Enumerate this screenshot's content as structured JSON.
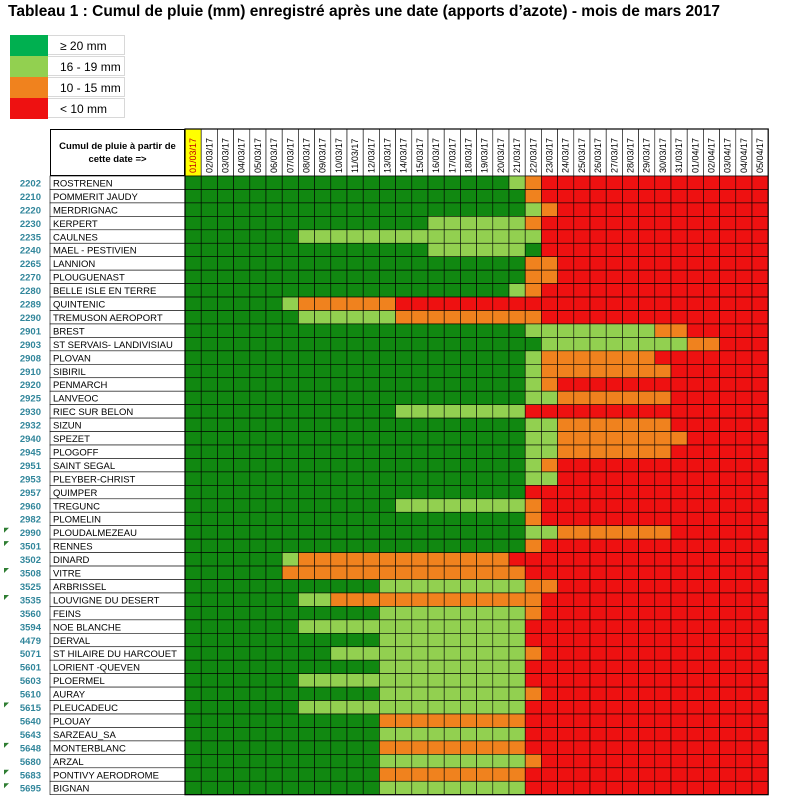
{
  "title": "Tableau 1 :  Cumul de pluie (mm) enregistré après une date (apports d’azote) - mois de mars 2017",
  "header_label": "Cumul de pluie à partir de cette date =>",
  "colors": {
    "G": "#118811",
    "L": "#92d050",
    "O": "#f0821e",
    "R": "#ee1111",
    "highlight": "#ffff00",
    "station_code": "#31869b",
    "legend_dark_green": "#00b050"
  },
  "legend": [
    {
      "key": "D",
      "label": "≥ 20 mm"
    },
    {
      "key": "L",
      "label": "16 - 19 mm"
    },
    {
      "key": "O",
      "label": "10 - 15 mm"
    },
    {
      "key": "R",
      "label": "< 10 mm"
    }
  ],
  "dates": [
    "01/03/17",
    "02/03/17",
    "03/03/17",
    "04/03/17",
    "05/03/17",
    "06/03/17",
    "07/03/17",
    "08/03/17",
    "09/03/17",
    "10/03/17",
    "11/03/17",
    "12/03/17",
    "13/03/17",
    "14/03/17",
    "15/03/17",
    "16/03/17",
    "17/03/17",
    "18/03/17",
    "19/03/17",
    "20/03/17",
    "21/03/17",
    "22/03/17",
    "23/03/17",
    "24/03/17",
    "25/03/17",
    "26/03/17",
    "27/03/17",
    "28/03/17",
    "29/03/17",
    "30/03/17",
    "31/03/17",
    "01/04/17",
    "02/04/17",
    "03/04/17",
    "04/04/17",
    "05/04/17"
  ],
  "stations": [
    {
      "code": "2202",
      "name": "ROSTRENEN",
      "flag": false,
      "cells": "GGGGGGGGGGGGGGGGGGGGLOR"
    },
    {
      "code": "2210",
      "name": "POMMERIT JAUDY",
      "flag": false,
      "cells": "GGGGGGGGGGGGGGGGGGGGGOR"
    },
    {
      "code": "2220",
      "name": "MERDRIGNAC",
      "flag": false,
      "cells": "GGGGGGGGGGGGGGGGGGGGGLO"
    },
    {
      "code": "2230",
      "name": "KERPERT",
      "flag": false,
      "cells": "GGGGGGGGGGGGGGGLLLLLLOR"
    },
    {
      "code": "2235",
      "name": "CAULNES",
      "flag": false,
      "cells": "GGGGGGGLLLLLLLLLLLLLLLR"
    },
    {
      "code": "2240",
      "name": "MAEL - PESTIVIEN",
      "flag": false,
      "cells": "GGGGGGGGGGGGGGGLLLLLLGR"
    },
    {
      "code": "2265",
      "name": "LANNION",
      "flag": false,
      "cells": "GGGGGGGGGGGGGGGGGGGGGOO"
    },
    {
      "code": "2270",
      "name": "PLOUGUENAST",
      "flag": false,
      "cells": "GGGGGGGGGGGGGGGGGGGGGOO"
    },
    {
      "code": "2280",
      "name": "BELLE ISLE EN TERRE",
      "flag": false,
      "cells": "GGGGGGGGGGGGGGGGGGGGLOR"
    },
    {
      "code": "2289",
      "name": "QUINTENIC",
      "flag": false,
      "cells": "GGGGGGLOOOOOORRRRRRRRRR"
    },
    {
      "code": "2290",
      "name": "TREMUSON AEROPORT",
      "flag": false,
      "cells": "GGGGGGGLLLLLLOOOOOOOOOR"
    },
    {
      "code": "2901",
      "name": "BREST",
      "flag": false,
      "cells": "GGGGGGGGGGGGGGGGGGGGGLLLLLLLLOOR"
    },
    {
      "code": "2903",
      "name": "ST SERVAIS- LANDIVISIAU",
      "flag": false,
      "cells": "GGGGGGGGGGGGGGGGGGGGGGLLLLLLLLLOO"
    },
    {
      "code": "2908",
      "name": "PLOVAN",
      "flag": false,
      "cells": "GGGGGGGGGGGGGGGGGGGGGLOOOOOOOR"
    },
    {
      "code": "2910",
      "name": "SIBIRIL",
      "flag": false,
      "cells": "GGGGGGGGGGGGGGGGGGGGGLOOOOOOOOR"
    },
    {
      "code": "2920",
      "name": "PENMARCH",
      "flag": false,
      "cells": "GGGGGGGGGGGGGGGGGGGGGLOR"
    },
    {
      "code": "2925",
      "name": "LANVEOC",
      "flag": false,
      "cells": "GGGGGGGGGGGGGGGGGGGGGLLOOOOOOOR"
    },
    {
      "code": "2930",
      "name": "RIEC SUR BELON",
      "flag": false,
      "cells": "GGGGGGGGGGGGGLLLLLLLLRR"
    },
    {
      "code": "2932",
      "name": "SIZUN",
      "flag": false,
      "cells": "GGGGGGGGGGGGGGGGGGGGGLLOOOOOOOR"
    },
    {
      "code": "2940",
      "name": "SPEZET",
      "flag": false,
      "cells": "GGGGGGGGGGGGGGGGGGGGGLLOOOOOOOOR"
    },
    {
      "code": "2945",
      "name": "PLOGOFF",
      "flag": false,
      "cells": "GGGGGGGGGGGGGGGGGGGGGLLOOOOOOOR"
    },
    {
      "code": "2951",
      "name": "SAINT SEGAL",
      "flag": false,
      "cells": "GGGGGGGGGGGGGGGGGGGGGLOR"
    },
    {
      "code": "2953",
      "name": "PLEYBER-CHRIST",
      "flag": false,
      "cells": "GGGGGGGGGGGGGGGGGGGGGLLR"
    },
    {
      "code": "2957",
      "name": "QUIMPER",
      "flag": false,
      "cells": "GGGGGGGGGGGGGGGGGGGGGRR"
    },
    {
      "code": "2960",
      "name": "TREGUNC",
      "flag": false,
      "cells": "GGGGGGGGGGGGGLLLLLLLLOR"
    },
    {
      "code": "2982",
      "name": "PLOMELIN",
      "flag": false,
      "cells": "GGGGGGGGGGGGGGGGGGGGGOR"
    },
    {
      "code": "2990",
      "name": "PLOUDALMEZEAU",
      "flag": true,
      "cells": "GGGGGGGGGGGGGGGGGGGGGLLOOOOOOOR"
    },
    {
      "code": "3501",
      "name": "RENNES",
      "flag": true,
      "cells": "GGGGGGGGGGGGGGGGGGGGGOR"
    },
    {
      "code": "3502",
      "name": "DINARD",
      "flag": false,
      "cells": "GGGGGGLOOOOOOOOOOOOORR"
    },
    {
      "code": "3508",
      "name": "VITRE",
      "flag": true,
      "cells": "GGGGGGOOOOOOOOOOOOOOOR"
    },
    {
      "code": "3525",
      "name": "ARBRISSEL",
      "flag": false,
      "cells": "GGGGGGGGGGGGLLLLLLLLLOOR"
    },
    {
      "code": "3535",
      "name": "LOUVIGNE DU DESERT",
      "flag": true,
      "cells": "GGGGGGGLLOOOOOOOOOOOOOR"
    },
    {
      "code": "3560",
      "name": "FEINS",
      "flag": false,
      "cells": "GGGGGGGGGGGGLLLLLLLLLOR"
    },
    {
      "code": "3594",
      "name": "NOE BLANCHE",
      "flag": false,
      "cells": "GGGGGGGLLLLLLLLLLLLLLR"
    },
    {
      "code": "4479",
      "name": "DERVAL",
      "flag": false,
      "cells": "GGGGGGGGGGGGLLLLLLLLLR"
    },
    {
      "code": "5071",
      "name": "ST HILAIRE DU HARCOUET",
      "flag": false,
      "cells": "GGGGGGGGGLLLLLLLLLLLLOR"
    },
    {
      "code": "5601",
      "name": "LORIENT -QUEVEN",
      "flag": false,
      "cells": "GGGGGGGGGGGGLLLLLLLLLR"
    },
    {
      "code": "5603",
      "name": "PLOERMEL",
      "flag": false,
      "cells": "GGGGGGGLLLLLLLLLLLLLLR"
    },
    {
      "code": "5610",
      "name": "AURAY",
      "flag": false,
      "cells": "GGGGGGGGGGGGLLLLLLLLLOR"
    },
    {
      "code": "5615",
      "name": "PLEUCADEUC",
      "flag": true,
      "cells": "GGGGGGGLLLLLLLLLLLLLLR"
    },
    {
      "code": "5640",
      "name": "PLOUAY",
      "flag": false,
      "cells": "GGGGGGGGGGGGOOOOOOOOOR"
    },
    {
      "code": "5643",
      "name": "SARZEAU_SA",
      "flag": false,
      "cells": "GGGGGGGGGGGGLLLLLLLLLR"
    },
    {
      "code": "5648",
      "name": "MONTERBLANC",
      "flag": true,
      "cells": "GGGGGGGGGGGGOOOOOOOOOR"
    },
    {
      "code": "5680",
      "name": "ARZAL",
      "flag": false,
      "cells": "GGGGGGGGGGGGLLLLLLLLLOR"
    },
    {
      "code": "5683",
      "name": "PONTIVY AERODROME",
      "flag": true,
      "cells": "GGGGGGGGGGGGOOOOOOOOOR"
    },
    {
      "code": "5695",
      "name": "BIGNAN",
      "flag": true,
      "cells": "GGGGGGGGGGGGLLLLLLLLLR"
    }
  ]
}
